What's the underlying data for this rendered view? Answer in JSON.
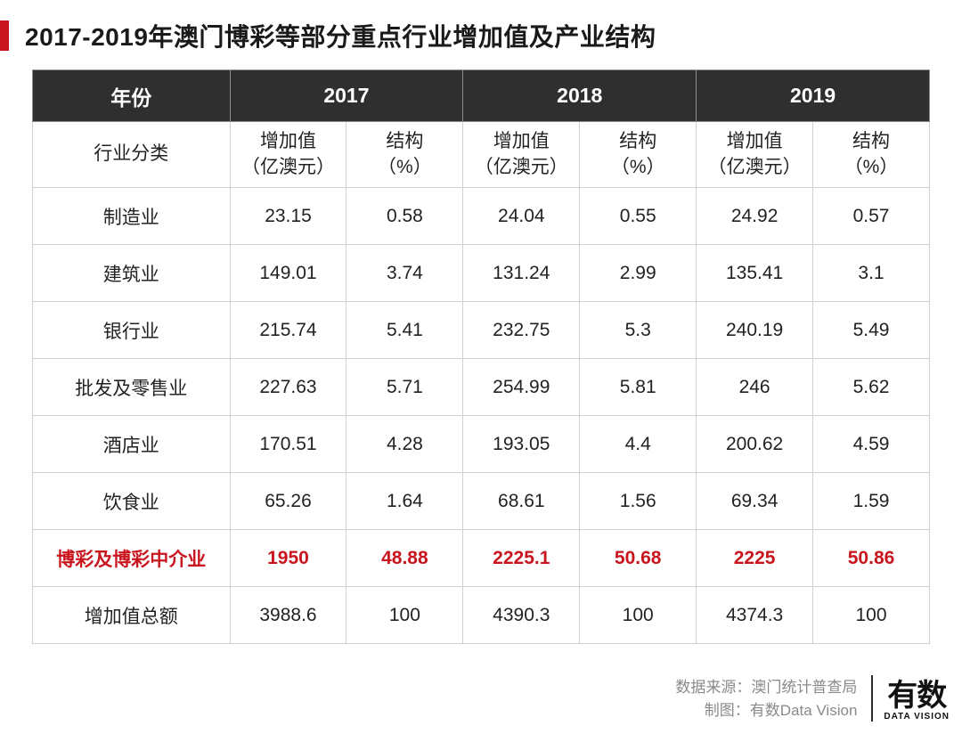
{
  "title": "2017-2019年澳门博彩等部分重点行业增加值及产业结构",
  "colors": {
    "accent": "#c9151e",
    "header_bg": "#2f2f2f",
    "header_fg": "#ffffff",
    "border": "#cfcfcf",
    "text": "#222222",
    "footer_text": "#8a8a8a"
  },
  "table": {
    "type": "table",
    "year_header_label": "年份",
    "category_header_label": "行业分类",
    "years": [
      "2017",
      "2018",
      "2019"
    ],
    "sub_columns": [
      {
        "label_line1": "增加值",
        "label_line2": "（亿澳元）"
      },
      {
        "label_line1": "结构",
        "label_line2": "（%）"
      }
    ],
    "rows": [
      {
        "category": "制造业",
        "cells": [
          "23.15",
          "0.58",
          "24.04",
          "0.55",
          "24.92",
          "0.57"
        ],
        "highlight": false
      },
      {
        "category": "建筑业",
        "cells": [
          "149.01",
          "3.74",
          "131.24",
          "2.99",
          "135.41",
          "3.1"
        ],
        "highlight": false
      },
      {
        "category": "银行业",
        "cells": [
          "215.74",
          "5.41",
          "232.75",
          "5.3",
          "240.19",
          "5.49"
        ],
        "highlight": false
      },
      {
        "category": "批发及零售业",
        "cells": [
          "227.63",
          "5.71",
          "254.99",
          "5.81",
          "246",
          "5.62"
        ],
        "highlight": false
      },
      {
        "category": "酒店业",
        "cells": [
          "170.51",
          "4.28",
          "193.05",
          "4.4",
          "200.62",
          "4.59"
        ],
        "highlight": false
      },
      {
        "category": "饮食业",
        "cells": [
          "65.26",
          "1.64",
          "68.61",
          "1.56",
          "69.34",
          "1.59"
        ],
        "highlight": false
      },
      {
        "category": "博彩及博彩中介业",
        "cells": [
          "1950",
          "48.88",
          "2225.1",
          "50.68",
          "2225",
          "50.86"
        ],
        "highlight": true
      },
      {
        "category": "增加值总额",
        "cells": [
          "3988.6",
          "100",
          "4390.3",
          "100",
          "4374.3",
          "100"
        ],
        "highlight": false
      }
    ]
  },
  "footer": {
    "source_label": "数据来源：",
    "source_value": "澳门统计普查局",
    "chart_label": "制图：",
    "chart_value": "有数Data Vision",
    "logo_cn": "有数",
    "logo_en": "DATA VISION"
  }
}
